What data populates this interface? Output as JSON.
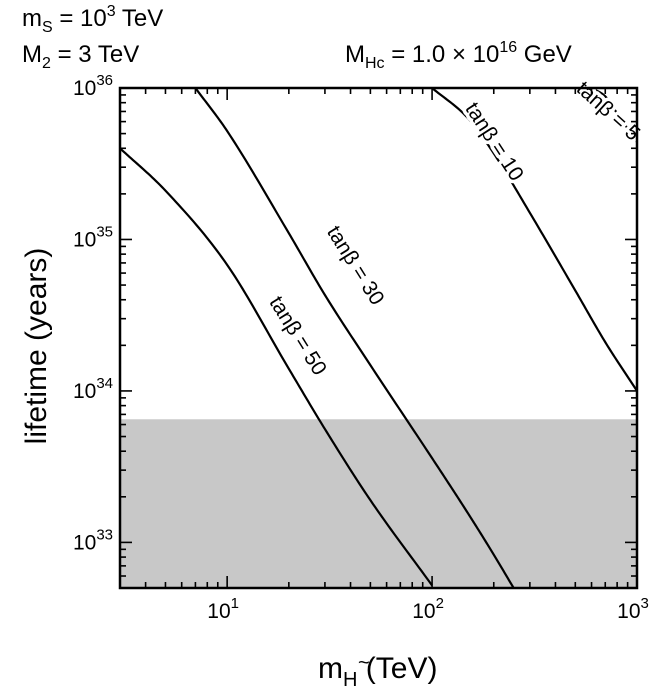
{
  "chart_data": {
    "type": "line",
    "header": {
      "ms_label": "m",
      "ms_sub": "S",
      "ms_eq": " = 10",
      "ms_exp": "3",
      "ms_unit": " TeV",
      "m2_label": "M",
      "m2_sub": "2",
      "m2_value": " = 3 TeV",
      "mhc_label": "M",
      "mhc_sub": "Hc",
      "mhc_value": " = 1.0 × 10",
      "mhc_exp": "16",
      "mhc_unit": " GeV"
    },
    "xlabel": {
      "main": "m",
      "sub": "H",
      "accent": "~",
      "unit": " (TeV)"
    },
    "ylabel": "lifetime (years)",
    "x_scale": "log",
    "y_scale": "log",
    "xlim": [
      3,
      1000
    ],
    "ylim": [
      5e+32,
      1e+36
    ],
    "x_ticks": [
      {
        "value": 10,
        "base": "10",
        "exp": "1"
      },
      {
        "value": 100,
        "base": "10",
        "exp": "2"
      },
      {
        "value": 1000,
        "base": "10",
        "exp": "3"
      }
    ],
    "y_ticks": [
      {
        "value": 1e+33,
        "base": "10",
        "exp": "33"
      },
      {
        "value": 1e+34,
        "base": "10",
        "exp": "34"
      },
      {
        "value": 1e+35,
        "base": "10",
        "exp": "35"
      },
      {
        "value": 1e+36,
        "base": "10",
        "exp": "36"
      }
    ],
    "excluded_region": {
      "y_max": 6.5e+33,
      "color": "#c8c8c8"
    },
    "series": [
      {
        "name": "tanβ = 50",
        "points": [
          [
            3,
            4e+35
          ],
          [
            5,
            2.1e+35
          ],
          [
            10,
            6.8e+34
          ],
          [
            20,
            1.4e+34
          ],
          [
            30,
            5.6e+33
          ],
          [
            50,
            1.9e+33
          ],
          [
            100,
            5.2e+32
          ]
        ]
      },
      {
        "name": "tanβ = 30",
        "points": [
          [
            7,
            1e+36
          ],
          [
            10,
            5.2e+35
          ],
          [
            20,
            1.1e+35
          ],
          [
            30,
            4.3e+34
          ],
          [
            50,
            1.48e+34
          ],
          [
            100,
            3.6e+33
          ],
          [
            150,
            1.55e+33
          ],
          [
            200,
            8.3e+32
          ],
          [
            250,
            5e+32
          ]
        ]
      },
      {
        "name": "tanβ = 10",
        "points": [
          [
            100,
            1e+36
          ],
          [
            150,
            6.3e+35
          ],
          [
            200,
            3.7e+35
          ],
          [
            300,
            1.5e+35
          ],
          [
            500,
            4.6e+34
          ],
          [
            700,
            2.1e+34
          ],
          [
            1000,
            1e+34
          ]
        ]
      },
      {
        "name": "tanβ = 5",
        "points": [
          [
            600,
            1e+36
          ],
          [
            700,
            8.8e+35
          ],
          [
            800,
            6.8e+35
          ],
          [
            1000,
            4.4e+35
          ]
        ]
      }
    ],
    "curve_labels": [
      {
        "text_left": "tanβ",
        "text_right": " = 50",
        "x": 22,
        "y": 2.3e+34,
        "angle": 58
      },
      {
        "text_left": "tanβ",
        "text_right": " = 30",
        "x": 42,
        "y": 6.7e+34,
        "angle": 58
      },
      {
        "text_left": "tanβ",
        "text_right": " = 10",
        "x": 200,
        "y": 4.4e+35,
        "angle": 57
      },
      {
        "text_left": "tanβ",
        "text_right": " = 5",
        "x": 720,
        "y": 7e+35,
        "angle": 42
      }
    ],
    "grid": false
  }
}
